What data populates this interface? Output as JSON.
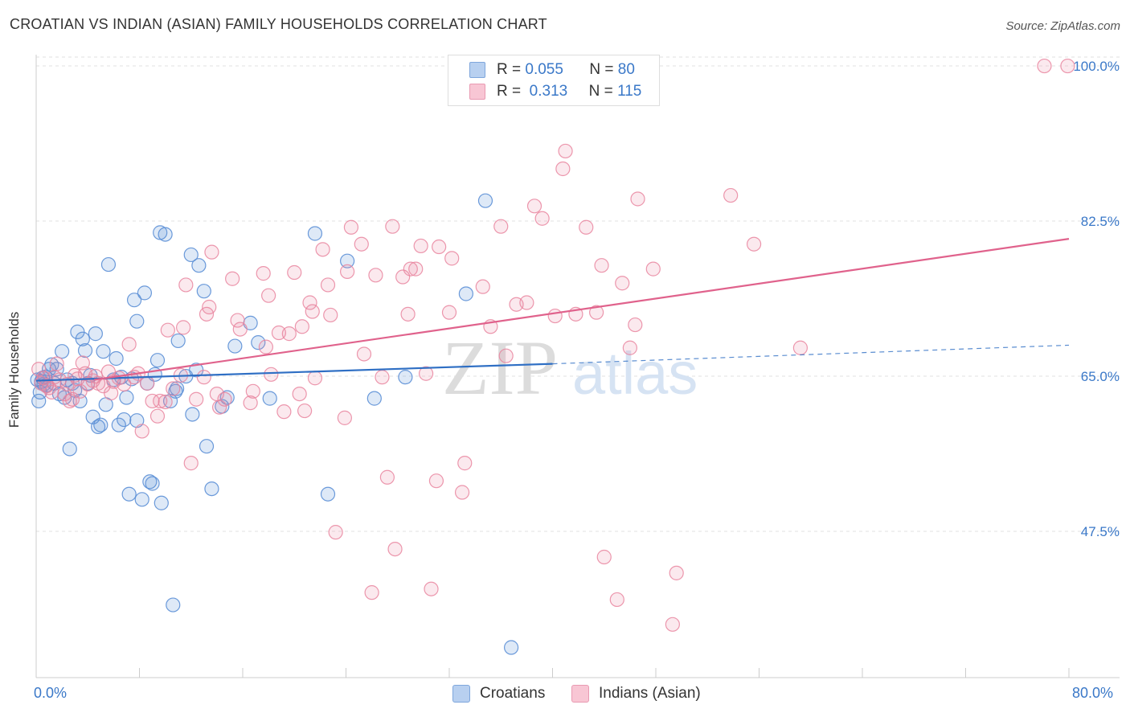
{
  "title": "CROATIAN VS INDIAN (ASIAN) FAMILY HOUSEHOLDS CORRELATION CHART",
  "source": "Source: ZipAtlas.com",
  "watermark": {
    "zip": "ZIP",
    "atlas": "atlas"
  },
  "legend": {
    "rows": [
      {
        "r_label": "R =",
        "r_value": "0.055",
        "n_label": "N =",
        "n_value": "80"
      },
      {
        "r_label": "R =",
        "r_value": "0.313",
        "n_label": "N =",
        "n_value": "115"
      }
    ]
  },
  "bottom_legend": [
    "Croatians",
    "Indians (Asian)"
  ],
  "chart_data": {
    "type": "scatter",
    "title": "CROATIAN VS INDIAN (ASIAN) FAMILY HOUSEHOLDS CORRELATION CHART",
    "xlabel": "",
    "ylabel": "Family Households",
    "xlim": [
      0,
      80
    ],
    "ylim": [
      31,
      102
    ],
    "x_tick_labels": [
      "0.0%",
      "80.0%"
    ],
    "y_ticks": [
      {
        "value": 100,
        "label": "100.0%"
      },
      {
        "value": 82.5,
        "label": "82.5%"
      },
      {
        "value": 65,
        "label": "65.0%"
      },
      {
        "value": 47.5,
        "label": "47.5%"
      }
    ],
    "colors": {
      "croatians": "#5b8fd6",
      "indians": "#e9859f",
      "croatians_line": "#2f6fc4",
      "indians_line": "#e0628c",
      "tick_label": "#3a78c8"
    },
    "series": [
      {
        "name": "Croatians",
        "trend": {
          "x_start": 0,
          "y_start": 64.5,
          "x_end": 40,
          "y_end": 66.4,
          "x_dashed_end": 80,
          "y_dashed_end": 68.5
        },
        "points": [
          [
            0.1,
            64.6
          ],
          [
            0.2,
            62.2
          ],
          [
            0.3,
            63.2
          ],
          [
            0.4,
            64.4
          ],
          [
            0.5,
            64.8
          ],
          [
            0.6,
            64.1
          ],
          [
            0.7,
            64.9
          ],
          [
            0.8,
            64.0
          ],
          [
            1.0,
            65.8
          ],
          [
            1.2,
            66.3
          ],
          [
            1.4,
            64.2
          ],
          [
            1.6,
            65.8
          ],
          [
            1.8,
            63.0
          ],
          [
            2.0,
            67.8
          ],
          [
            2.2,
            62.6
          ],
          [
            2.4,
            64.6
          ],
          [
            2.6,
            56.8
          ],
          [
            2.8,
            64.2
          ],
          [
            3.0,
            63.4
          ],
          [
            3.2,
            70.0
          ],
          [
            3.4,
            62.2
          ],
          [
            3.6,
            69.2
          ],
          [
            3.8,
            67.9
          ],
          [
            4.0,
            64.2
          ],
          [
            4.2,
            65.1
          ],
          [
            4.4,
            60.4
          ],
          [
            4.6,
            69.8
          ],
          [
            4.8,
            59.3
          ],
          [
            5.0,
            59.5
          ],
          [
            5.2,
            67.8
          ],
          [
            5.4,
            61.8
          ],
          [
            5.6,
            77.6
          ],
          [
            6.0,
            64.6
          ],
          [
            6.2,
            67.0
          ],
          [
            6.4,
            59.5
          ],
          [
            6.6,
            64.9
          ],
          [
            6.8,
            60.1
          ],
          [
            7.0,
            62.6
          ],
          [
            7.2,
            51.7
          ],
          [
            7.4,
            64.7
          ],
          [
            7.6,
            73.6
          ],
          [
            7.8,
            71.2
          ],
          [
            7.8,
            60.0
          ],
          [
            8.2,
            51.1
          ],
          [
            8.4,
            74.4
          ],
          [
            8.6,
            64.2
          ],
          [
            8.8,
            53.1
          ],
          [
            9.0,
            52.9
          ],
          [
            9.2,
            65.2
          ],
          [
            9.4,
            66.8
          ],
          [
            9.6,
            81.2
          ],
          [
            9.7,
            50.7
          ],
          [
            10.0,
            81.0
          ],
          [
            10.4,
            62.2
          ],
          [
            10.6,
            39.2
          ],
          [
            10.8,
            63.3
          ],
          [
            10.9,
            63.6
          ],
          [
            11.0,
            69.0
          ],
          [
            11.6,
            65.0
          ],
          [
            12.0,
            78.7
          ],
          [
            12.1,
            60.7
          ],
          [
            12.4,
            65.7
          ],
          [
            12.6,
            77.5
          ],
          [
            13.0,
            74.6
          ],
          [
            13.2,
            57.1
          ],
          [
            13.6,
            52.3
          ],
          [
            14.4,
            61.6
          ],
          [
            14.8,
            62.6
          ],
          [
            15.4,
            68.4
          ],
          [
            16.6,
            71.0
          ],
          [
            17.2,
            68.8
          ],
          [
            18.1,
            62.5
          ],
          [
            21.6,
            81.1
          ],
          [
            22.6,
            51.7
          ],
          [
            24.1,
            78.0
          ],
          [
            26.2,
            62.5
          ],
          [
            28.6,
            64.9
          ],
          [
            33.3,
            74.3
          ],
          [
            34.8,
            84.8
          ],
          [
            36.8,
            34.4
          ]
        ]
      },
      {
        "name": "Indians (Asian)",
        "trend": {
          "x_start": 4.5,
          "y_start": 64.6,
          "x_end": 80,
          "y_end": 80.5
        },
        "points": [
          [
            0.2,
            65.8
          ],
          [
            0.4,
            64.2
          ],
          [
            0.6,
            64.8
          ],
          [
            0.8,
            63.9
          ],
          [
            1.0,
            63.7
          ],
          [
            1.2,
            63.2
          ],
          [
            1.4,
            64.9
          ],
          [
            1.6,
            66.4
          ],
          [
            1.8,
            64.6
          ],
          [
            2.2,
            63.0
          ],
          [
            2.4,
            64.1
          ],
          [
            2.6,
            62.2
          ],
          [
            2.8,
            62.4
          ],
          [
            3.0,
            65.1
          ],
          [
            3.2,
            64.7
          ],
          [
            3.4,
            63.3
          ],
          [
            3.6,
            66.5
          ],
          [
            3.8,
            65.3
          ],
          [
            4.0,
            64.1
          ],
          [
            4.4,
            64.5
          ],
          [
            4.6,
            65.0
          ],
          [
            4.8,
            64.2
          ],
          [
            5.2,
            63.9
          ],
          [
            5.6,
            65.5
          ],
          [
            5.8,
            63.1
          ],
          [
            6.0,
            64.4
          ],
          [
            6.4,
            64.8
          ],
          [
            6.8,
            64.1
          ],
          [
            7.2,
            68.6
          ],
          [
            7.6,
            64.9
          ],
          [
            7.9,
            65.3
          ],
          [
            8.2,
            58.8
          ],
          [
            8.6,
            64.2
          ],
          [
            9.0,
            62.2
          ],
          [
            9.4,
            60.5
          ],
          [
            9.6,
            62.2
          ],
          [
            10.0,
            62.1
          ],
          [
            10.2,
            70.2
          ],
          [
            10.6,
            63.6
          ],
          [
            11.2,
            65.1
          ],
          [
            11.4,
            70.5
          ],
          [
            11.6,
            75.3
          ],
          [
            12.0,
            55.2
          ],
          [
            12.4,
            62.4
          ],
          [
            13.0,
            64.9
          ],
          [
            13.2,
            72.0
          ],
          [
            13.4,
            72.8
          ],
          [
            13.6,
            79.0
          ],
          [
            14.0,
            63.0
          ],
          [
            14.2,
            61.5
          ],
          [
            14.6,
            62.4
          ],
          [
            15.2,
            76.0
          ],
          [
            15.6,
            71.3
          ],
          [
            15.8,
            70.3
          ],
          [
            16.6,
            62.0
          ],
          [
            16.8,
            63.3
          ],
          [
            17.6,
            76.6
          ],
          [
            17.8,
            68.3
          ],
          [
            18.0,
            74.1
          ],
          [
            18.2,
            65.2
          ],
          [
            18.8,
            69.9
          ],
          [
            19.2,
            61.0
          ],
          [
            19.6,
            69.8
          ],
          [
            20.0,
            76.7
          ],
          [
            20.4,
            63.0
          ],
          [
            20.6,
            70.6
          ],
          [
            20.8,
            61.1
          ],
          [
            21.2,
            73.3
          ],
          [
            21.4,
            72.3
          ],
          [
            21.6,
            64.8
          ],
          [
            22.2,
            79.3
          ],
          [
            22.6,
            75.3
          ],
          [
            22.8,
            71.9
          ],
          [
            23.2,
            47.4
          ],
          [
            23.9,
            60.3
          ],
          [
            24.1,
            76.8
          ],
          [
            24.4,
            81.8
          ],
          [
            25.2,
            79.9
          ],
          [
            25.4,
            67.5
          ],
          [
            26.0,
            40.6
          ],
          [
            26.3,
            76.4
          ],
          [
            26.8,
            64.9
          ],
          [
            27.2,
            53.6
          ],
          [
            27.6,
            81.9
          ],
          [
            27.8,
            45.5
          ],
          [
            28.4,
            76.2
          ],
          [
            28.8,
            72.0
          ],
          [
            29.0,
            77.1
          ],
          [
            29.4,
            77.1
          ],
          [
            29.8,
            79.7
          ],
          [
            30.2,
            65.3
          ],
          [
            30.6,
            41.0
          ],
          [
            31.0,
            53.2
          ],
          [
            31.2,
            79.6
          ],
          [
            32.0,
            72.2
          ],
          [
            32.2,
            78.3
          ],
          [
            33.0,
            51.9
          ],
          [
            33.2,
            55.2
          ],
          [
            34.6,
            75.1
          ],
          [
            35.2,
            70.6
          ],
          [
            36.0,
            81.9
          ],
          [
            36.4,
            67.3
          ],
          [
            37.2,
            73.1
          ],
          [
            38.0,
            73.3
          ],
          [
            38.6,
            84.2
          ],
          [
            39.2,
            82.8
          ],
          [
            40.2,
            71.8
          ],
          [
            40.8,
            88.4
          ],
          [
            41.0,
            90.4
          ],
          [
            41.8,
            72.0
          ],
          [
            42.6,
            81.8
          ],
          [
            43.4,
            72.2
          ],
          [
            43.8,
            77.5
          ],
          [
            44.0,
            44.6
          ],
          [
            45.0,
            39.8
          ],
          [
            45.4,
            75.5
          ],
          [
            46.0,
            68.2
          ],
          [
            46.4,
            70.8
          ],
          [
            46.6,
            85.0
          ],
          [
            47.8,
            77.1
          ],
          [
            49.3,
            37.0
          ],
          [
            49.6,
            42.8
          ],
          [
            53.8,
            85.4
          ],
          [
            55.6,
            79.9
          ],
          [
            59.2,
            68.2
          ],
          [
            78.1,
            100.0
          ],
          [
            79.9,
            100.0
          ]
        ]
      }
    ]
  }
}
